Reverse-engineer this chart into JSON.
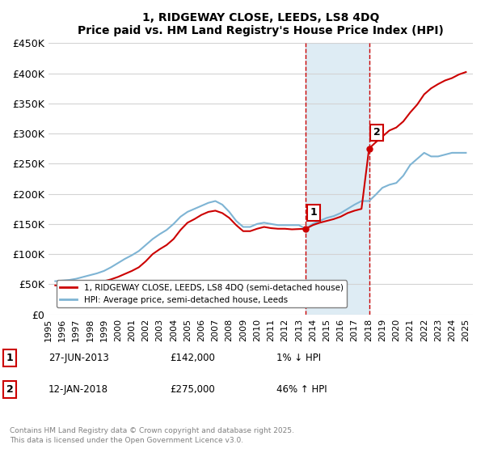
{
  "title": "1, RIDGEWAY CLOSE, LEEDS, LS8 4DQ",
  "subtitle": "Price paid vs. HM Land Registry's House Price Index (HPI)",
  "ylabel_ticks": [
    "£0",
    "£50K",
    "£100K",
    "£150K",
    "£200K",
    "£250K",
    "£300K",
    "£350K",
    "£400K",
    "£450K"
  ],
  "ytick_values": [
    0,
    50000,
    100000,
    150000,
    200000,
    250000,
    300000,
    350000,
    400000,
    450000
  ],
  "ylim": [
    0,
    450000
  ],
  "xlim_start": 1995.0,
  "xlim_end": 2025.5,
  "sale1_x": 2013.49,
  "sale1_y": 142000,
  "sale2_x": 2018.04,
  "sale2_y": 275000,
  "shade_xmin": 2013.49,
  "shade_xmax": 2018.04,
  "line1_label": "1, RIDGEWAY CLOSE, LEEDS, LS8 4DQ (semi-detached house)",
  "line2_label": "HPI: Average price, semi-detached house, Leeds",
  "line1_color": "#cc0000",
  "line2_color": "#7EB4D4",
  "footnote": "Contains HM Land Registry data © Crown copyright and database right 2025.\nThis data is licensed under the Open Government Licence v3.0.",
  "table_entries": [
    {
      "num": "1",
      "date": "27-JUN-2013",
      "price": "£142,000",
      "hpi": "1% ↓ HPI"
    },
    {
      "num": "2",
      "date": "12-JAN-2018",
      "price": "£275,000",
      "hpi": "46% ↑ HPI"
    }
  ],
  "red_line_data_x": [
    1995.5,
    1996.0,
    1996.5,
    1997.0,
    1997.5,
    1998.0,
    1998.5,
    1999.0,
    1999.5,
    2000.0,
    2000.5,
    2001.0,
    2001.5,
    2002.0,
    2002.5,
    2003.0,
    2003.5,
    2004.0,
    2004.5,
    2005.0,
    2005.5,
    2006.0,
    2006.5,
    2007.0,
    2007.5,
    2008.0,
    2008.5,
    2009.0,
    2009.5,
    2010.0,
    2010.5,
    2011.0,
    2011.5,
    2012.0,
    2012.5,
    2013.49,
    2013.5,
    2014.0,
    2014.5,
    2015.0,
    2015.5,
    2016.0,
    2016.5,
    2017.0,
    2017.5,
    2018.04,
    2018.5,
    2019.0,
    2019.5,
    2020.0,
    2020.5,
    2021.0,
    2021.5,
    2022.0,
    2022.5,
    2023.0,
    2023.5,
    2024.0,
    2024.5,
    2025.0
  ],
  "red_line_data_y": [
    48000,
    47000,
    47500,
    49000,
    50000,
    51000,
    52000,
    55000,
    58000,
    62000,
    67000,
    72000,
    78000,
    88000,
    100000,
    108000,
    115000,
    125000,
    140000,
    152000,
    158000,
    165000,
    170000,
    172000,
    168000,
    160000,
    148000,
    138000,
    138000,
    142000,
    145000,
    143000,
    142000,
    142000,
    141000,
    142000,
    142000,
    148000,
    152000,
    155000,
    158000,
    162000,
    168000,
    172000,
    175000,
    275000,
    285000,
    295000,
    305000,
    310000,
    320000,
    335000,
    348000,
    365000,
    375000,
    382000,
    388000,
    392000,
    398000,
    402000
  ],
  "blue_line_data_x": [
    1995.5,
    1996.0,
    1996.5,
    1997.0,
    1997.5,
    1998.0,
    1998.5,
    1999.0,
    1999.5,
    2000.0,
    2000.5,
    2001.0,
    2001.5,
    2002.0,
    2002.5,
    2003.0,
    2003.5,
    2004.0,
    2004.5,
    2005.0,
    2005.5,
    2006.0,
    2006.5,
    2007.0,
    2007.5,
    2008.0,
    2008.5,
    2009.0,
    2009.5,
    2010.0,
    2010.5,
    2011.0,
    2011.5,
    2012.0,
    2012.5,
    2013.0,
    2013.49,
    2014.0,
    2014.5,
    2015.0,
    2015.5,
    2016.0,
    2016.5,
    2017.0,
    2017.5,
    2018.04,
    2018.5,
    2019.0,
    2019.5,
    2020.0,
    2020.5,
    2021.0,
    2021.5,
    2022.0,
    2022.5,
    2023.0,
    2023.5,
    2024.0,
    2024.5,
    2025.0
  ],
  "blue_line_data_y": [
    55000,
    56000,
    57000,
    59000,
    62000,
    65000,
    68000,
    72000,
    78000,
    85000,
    92000,
    98000,
    105000,
    115000,
    125000,
    133000,
    140000,
    150000,
    162000,
    170000,
    175000,
    180000,
    185000,
    188000,
    182000,
    170000,
    155000,
    145000,
    145000,
    150000,
    152000,
    150000,
    148000,
    148000,
    148000,
    148000,
    142000,
    150000,
    155000,
    160000,
    163000,
    168000,
    175000,
    182000,
    188000,
    188000,
    198000,
    210000,
    215000,
    218000,
    230000,
    248000,
    258000,
    268000,
    262000,
    262000,
    265000,
    268000,
    268000,
    268000
  ]
}
